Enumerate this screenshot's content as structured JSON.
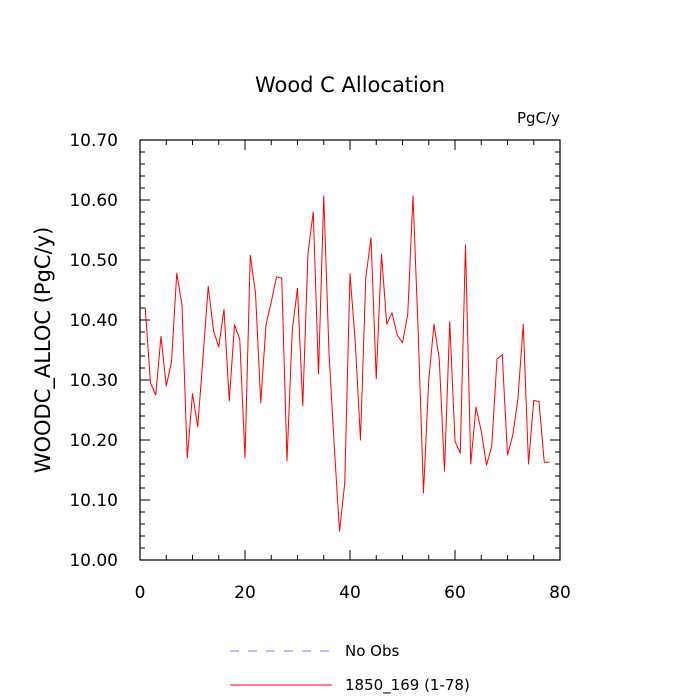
{
  "chart_data": {
    "type": "line",
    "title": "Wood C Allocation",
    "units_label": "PgC/y",
    "ylabel": "WOODC_ALLOC  (PgC/y)",
    "xlabel": "",
    "xlim": [
      0,
      80
    ],
    "ylim": [
      10.0,
      10.7
    ],
    "x_ticks": [
      0,
      20,
      40,
      60,
      80
    ],
    "x_tick_labels": [
      "0",
      "20",
      "40",
      "60",
      "80"
    ],
    "y_ticks": [
      10.0,
      10.1,
      10.2,
      10.3,
      10.4,
      10.5,
      10.6,
      10.7
    ],
    "y_tick_labels": [
      "10.00",
      "10.10",
      "10.20",
      "10.30",
      "10.40",
      "10.50",
      "10.60",
      "10.70"
    ],
    "grid": false,
    "legend_position": "bottom",
    "legend": [
      {
        "label": "No Obs",
        "color": "#7b7bff",
        "dash": true
      },
      {
        "label": "1850_169 (1-78)",
        "color": "#ff0000",
        "dash": false
      }
    ],
    "series": [
      {
        "name": "1850_169 (1-78)",
        "color": "#ff0000",
        "x": [
          1,
          2,
          3,
          4,
          5,
          6,
          7,
          8,
          9,
          10,
          11,
          12,
          13,
          14,
          15,
          16,
          17,
          18,
          19,
          20,
          21,
          22,
          23,
          24,
          25,
          26,
          27,
          28,
          29,
          30,
          31,
          32,
          33,
          34,
          35,
          36,
          37,
          38,
          39,
          40,
          41,
          42,
          43,
          44,
          45,
          46,
          47,
          48,
          49,
          50,
          51,
          52,
          53,
          54,
          55,
          56,
          57,
          58,
          59,
          60,
          61,
          62,
          63,
          64,
          65,
          66,
          67,
          68,
          69,
          70,
          71,
          72,
          73,
          74,
          75,
          76,
          77,
          78
        ],
        "values": [
          10.42,
          10.295,
          10.275,
          10.373,
          10.29,
          10.33,
          10.478,
          10.425,
          10.17,
          10.277,
          10.222,
          10.338,
          10.456,
          10.382,
          10.355,
          10.418,
          10.265,
          10.392,
          10.368,
          10.17,
          10.508,
          10.445,
          10.262,
          10.392,
          10.43,
          10.472,
          10.47,
          10.165,
          10.383,
          10.453,
          10.257,
          10.512,
          10.58,
          10.31,
          10.607,
          10.345,
          10.19,
          10.048,
          10.128,
          10.477,
          10.363,
          10.2,
          10.47,
          10.537,
          10.302,
          10.51,
          10.393,
          10.412,
          10.375,
          10.362,
          10.41,
          10.607,
          10.378,
          10.112,
          10.3,
          10.393,
          10.335,
          10.148,
          10.397,
          10.198,
          10.178,
          10.525,
          10.16,
          10.255,
          10.215,
          10.158,
          10.19,
          10.335,
          10.342,
          10.175,
          10.208,
          10.27,
          10.393,
          10.16,
          10.266,
          10.264,
          10.163,
          10.163
        ]
      }
    ]
  }
}
